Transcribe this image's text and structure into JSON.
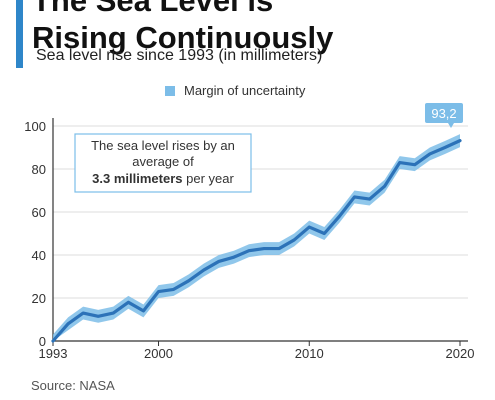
{
  "header": {
    "title": "The Sea Level is\nRising Continuously",
    "subtitle": "Sea level rise since 1993 (in millimeters)"
  },
  "legend": {
    "label": "Margin of uncertainty"
  },
  "annotation": {
    "line1": "The sea level rises by an",
    "line2": "average of",
    "bold": "3.3 millimeters",
    "rest": " per year"
  },
  "end_label": "93,2",
  "source": "Source: NASA",
  "colors": {
    "line": "#2c72b8",
    "band": "#7cbde8",
    "axis": "#333333",
    "grid": "#dddddd",
    "annotation_border": "#7cbde8",
    "label_bg": "#7cbde8"
  },
  "chart_data": {
    "type": "line",
    "title": "The Sea Level is Rising Continuously",
    "subtitle": "Sea level rise since 1993 (in millimeters)",
    "xlim": [
      1993,
      2020
    ],
    "ylim": [
      0,
      100
    ],
    "x_ticks": [
      1993,
      2000,
      2010,
      2020
    ],
    "y_ticks": [
      0,
      20,
      40,
      60,
      80,
      100
    ],
    "grid": "horizontal",
    "legend_position": "top",
    "x": [
      1993,
      1994,
      1995,
      1996,
      1997,
      1998,
      1999,
      2000,
      2001,
      2002,
      2003,
      2004,
      2005,
      2006,
      2007,
      2008,
      2009,
      2010,
      2011,
      2012,
      2013,
      2014,
      2015,
      2016,
      2017,
      2018,
      2019,
      2020
    ],
    "series": [
      {
        "values": [
          0,
          8,
          13,
          11.5,
          13,
          18,
          14,
          23,
          24,
          28,
          33,
          37,
          39,
          42,
          43,
          43,
          47,
          53,
          50,
          58,
          67,
          66,
          72,
          83,
          82,
          87,
          90,
          93.2
        ],
        "uncertainty": 3
      }
    ]
  }
}
